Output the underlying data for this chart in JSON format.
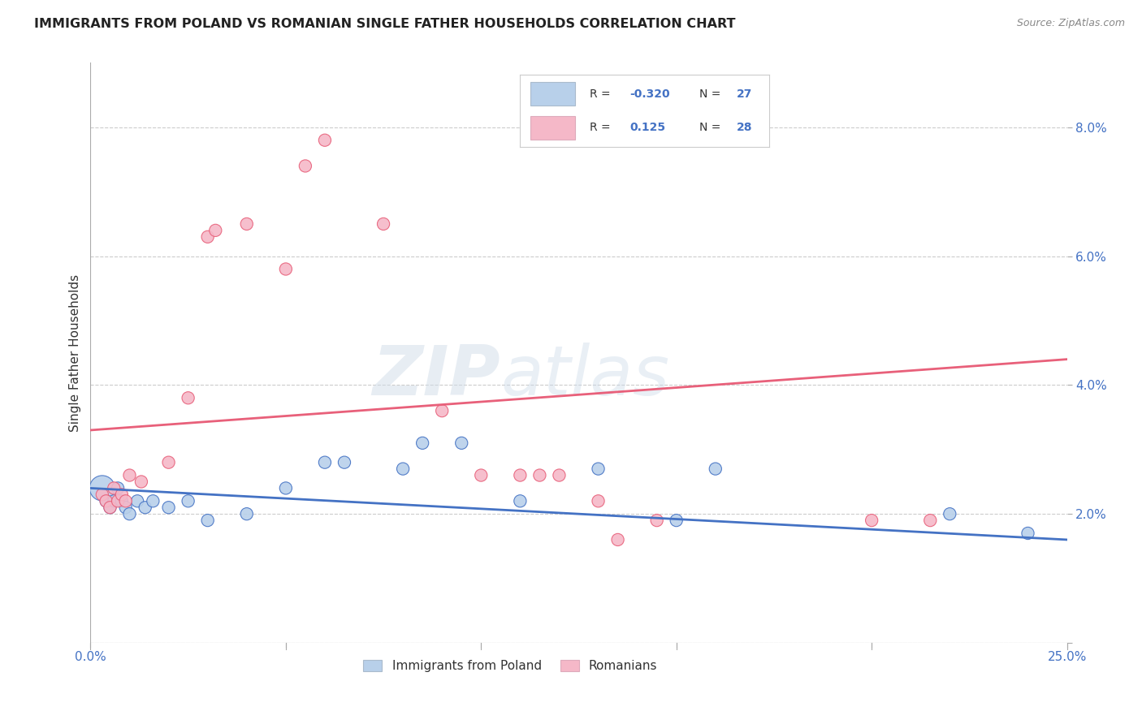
{
  "title": "IMMIGRANTS FROM POLAND VS ROMANIAN SINGLE FATHER HOUSEHOLDS CORRELATION CHART",
  "source": "Source: ZipAtlas.com",
  "ylabel_label": "Single Father Households",
  "xlim": [
    0.0,
    0.25
  ],
  "ylim": [
    0.0,
    0.09
  ],
  "xticks": [
    0.0,
    0.05,
    0.1,
    0.15,
    0.2,
    0.25
  ],
  "yticks": [
    0.0,
    0.02,
    0.04,
    0.06,
    0.08
  ],
  "ytick_labels": [
    "",
    "2.0%",
    "4.0%",
    "6.0%",
    "8.0%"
  ],
  "xtick_labels": [
    "0.0%",
    "",
    "",
    "",
    "",
    "25.0%"
  ],
  "grid_color": "#cccccc",
  "background_color": "#ffffff",
  "poland_color": "#b8d0ea",
  "romania_color": "#f5b8c8",
  "poland_line_color": "#4472c4",
  "romania_line_color": "#e8607a",
  "legend_R_poland": "-0.320",
  "legend_N_poland": "27",
  "legend_R_romania": "0.125",
  "legend_N_romania": "28",
  "poland_line_start_y": 0.024,
  "poland_line_end_y": 0.016,
  "romania_line_start_y": 0.033,
  "romania_line_end_y": 0.044,
  "poland_points": [
    [
      0.003,
      0.024,
      500
    ],
    [
      0.004,
      0.022,
      120
    ],
    [
      0.005,
      0.021,
      120
    ],
    [
      0.006,
      0.022,
      120
    ],
    [
      0.007,
      0.024,
      120
    ],
    [
      0.008,
      0.022,
      120
    ],
    [
      0.009,
      0.021,
      120
    ],
    [
      0.01,
      0.02,
      120
    ],
    [
      0.012,
      0.022,
      120
    ],
    [
      0.014,
      0.021,
      120
    ],
    [
      0.016,
      0.022,
      120
    ],
    [
      0.02,
      0.021,
      120
    ],
    [
      0.025,
      0.022,
      120
    ],
    [
      0.03,
      0.019,
      120
    ],
    [
      0.04,
      0.02,
      120
    ],
    [
      0.05,
      0.024,
      120
    ],
    [
      0.06,
      0.028,
      120
    ],
    [
      0.065,
      0.028,
      120
    ],
    [
      0.08,
      0.027,
      120
    ],
    [
      0.085,
      0.031,
      120
    ],
    [
      0.095,
      0.031,
      120
    ],
    [
      0.11,
      0.022,
      120
    ],
    [
      0.13,
      0.027,
      120
    ],
    [
      0.15,
      0.019,
      120
    ],
    [
      0.16,
      0.027,
      120
    ],
    [
      0.22,
      0.02,
      120
    ],
    [
      0.24,
      0.017,
      120
    ]
  ],
  "romania_points": [
    [
      0.003,
      0.023,
      120
    ],
    [
      0.004,
      0.022,
      120
    ],
    [
      0.005,
      0.021,
      120
    ],
    [
      0.006,
      0.024,
      120
    ],
    [
      0.007,
      0.022,
      120
    ],
    [
      0.008,
      0.023,
      120
    ],
    [
      0.009,
      0.022,
      120
    ],
    [
      0.01,
      0.026,
      120
    ],
    [
      0.013,
      0.025,
      120
    ],
    [
      0.02,
      0.028,
      120
    ],
    [
      0.025,
      0.038,
      120
    ],
    [
      0.03,
      0.063,
      120
    ],
    [
      0.032,
      0.064,
      120
    ],
    [
      0.04,
      0.065,
      120
    ],
    [
      0.05,
      0.058,
      120
    ],
    [
      0.055,
      0.074,
      120
    ],
    [
      0.06,
      0.078,
      120
    ],
    [
      0.075,
      0.065,
      120
    ],
    [
      0.09,
      0.036,
      120
    ],
    [
      0.1,
      0.026,
      120
    ],
    [
      0.11,
      0.026,
      120
    ],
    [
      0.115,
      0.026,
      120
    ],
    [
      0.12,
      0.026,
      120
    ],
    [
      0.13,
      0.022,
      120
    ],
    [
      0.135,
      0.016,
      120
    ],
    [
      0.145,
      0.019,
      120
    ],
    [
      0.2,
      0.019,
      120
    ],
    [
      0.215,
      0.019,
      120
    ]
  ]
}
